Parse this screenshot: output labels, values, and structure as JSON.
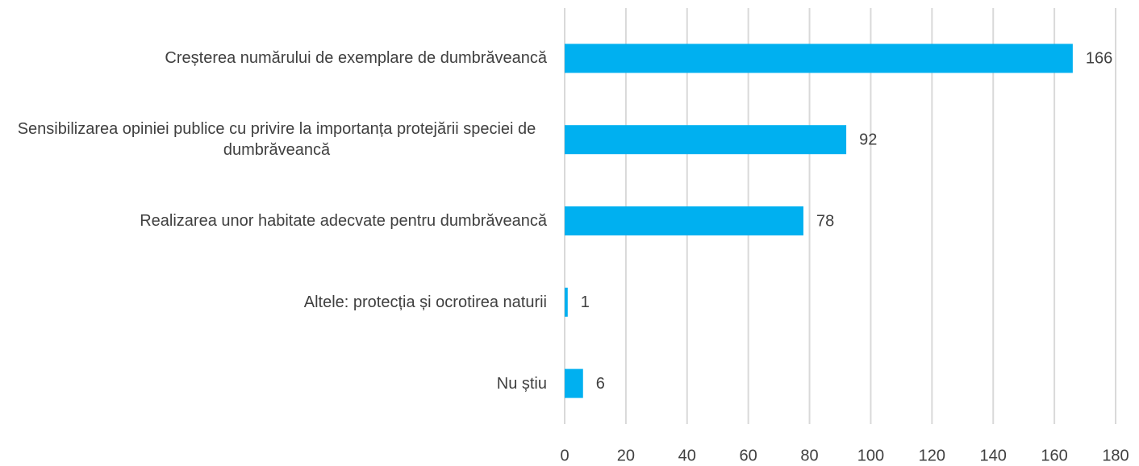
{
  "chart_data": {
    "type": "bar",
    "orientation": "horizontal",
    "categories": [
      "Creșterea numărului de exemplare de dumbrăveancă",
      "Sensibilizarea opiniei publice cu privire la importanța protejării speciei de dumbrăveancă",
      "Realizarea unor habitate adecvate pentru dumbrăveancă",
      "Altele: protecția și ocrotirea naturii",
      "Nu știu"
    ],
    "values": [
      166,
      92,
      78,
      1,
      6
    ],
    "color": "#00b0f0",
    "xlim": [
      0,
      180
    ],
    "xticks": [
      0,
      20,
      40,
      60,
      80,
      100,
      120,
      140,
      160,
      180
    ],
    "grid": true
  }
}
